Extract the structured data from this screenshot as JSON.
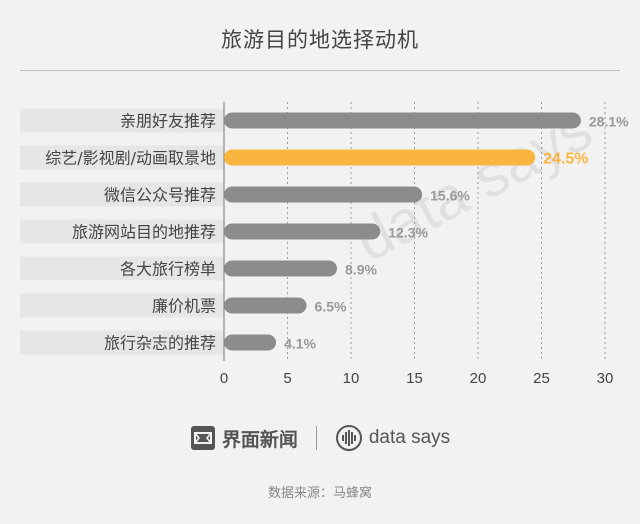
{
  "title": "旅游目的地选择动机",
  "chart_data": {
    "type": "bar",
    "orientation": "horizontal",
    "categories": [
      "亲朋好友推荐",
      "综艺/影视剧/动画取景地",
      "微信公众号推荐",
      "旅游网站目的地推荐",
      "各大旅行榜单",
      "廉价机票",
      "旅行杂志的推荐"
    ],
    "values": [
      28.1,
      24.5,
      15.6,
      12.3,
      8.9,
      6.5,
      4.1
    ],
    "value_labels": [
      "28.1%",
      "24.5%",
      "15.6%",
      "12.3%",
      "8.9%",
      "6.5%",
      "4.1%"
    ],
    "highlight_index": 1,
    "xlim": [
      0,
      30
    ],
    "xticks": [
      0,
      5,
      10,
      15,
      20,
      25,
      30
    ],
    "xtick_labels": [
      "0",
      "5",
      "10",
      "15",
      "20",
      "25",
      "30"
    ],
    "grid": "vertical-dashed",
    "colors": {
      "bar": "#8c8c8c",
      "highlight": "#f9b53f",
      "label": "#999999"
    }
  },
  "footer": {
    "logo_text": "界面新闻",
    "datasays_text": "data says",
    "source": "数据来源：马蜂窝"
  }
}
